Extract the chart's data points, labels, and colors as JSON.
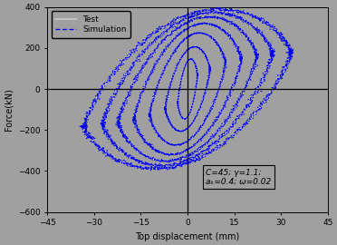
{
  "title": "",
  "xlabel": "Top displacement (mm)",
  "ylabel": "Force(kN)",
  "xlim": [
    -45,
    45
  ],
  "ylim": [
    -600,
    400
  ],
  "xticks": [
    -45,
    -30,
    -15,
    0,
    15,
    30,
    45
  ],
  "yticks": [
    -600,
    -400,
    -200,
    0,
    200,
    400
  ],
  "background_color": "#a0a0a0",
  "test_color": "#c8c8c8",
  "sim_color": "#0000ee",
  "annotation_line1": "C=45; γ=1.1;",
  "annotation_line2": "aₖ=0.4; ω=0.02",
  "num_groups": 7,
  "cycles_per_group": 3
}
